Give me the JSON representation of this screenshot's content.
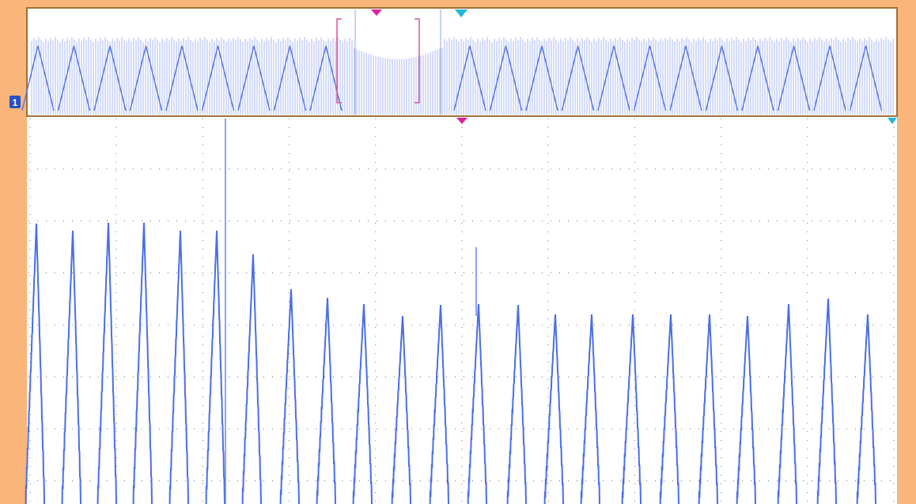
{
  "channel_marker": "1"
}
